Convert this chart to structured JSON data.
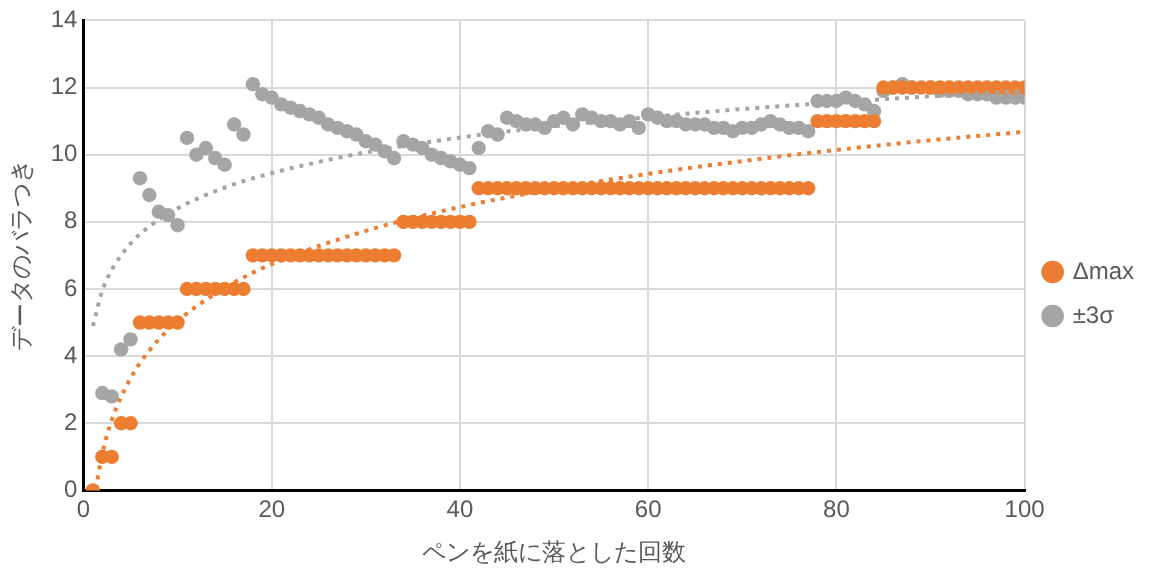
{
  "chart_data": {
    "type": "scatter",
    "xlabel": "ペンを紙に落とした回数",
    "ylabel": "データのバラつき",
    "x": [
      1,
      2,
      3,
      4,
      5,
      6,
      7,
      8,
      9,
      10,
      11,
      12,
      13,
      14,
      15,
      16,
      17,
      18,
      19,
      20,
      21,
      22,
      23,
      24,
      25,
      26,
      27,
      28,
      29,
      30,
      31,
      32,
      33,
      34,
      35,
      36,
      37,
      38,
      39,
      40,
      41,
      42,
      43,
      44,
      45,
      46,
      47,
      48,
      49,
      50,
      51,
      52,
      53,
      54,
      55,
      56,
      57,
      58,
      59,
      60,
      61,
      62,
      63,
      64,
      65,
      66,
      67,
      68,
      69,
      70,
      71,
      72,
      73,
      74,
      75,
      76,
      77,
      78,
      79,
      80,
      81,
      82,
      83,
      84,
      85,
      86,
      87,
      88,
      89,
      90,
      91,
      92,
      93,
      94,
      95,
      96,
      97,
      98,
      99,
      100
    ],
    "series": [
      {
        "type": "line",
        "color": "#a5a5a5",
        "line_style": "dotted",
        "marker": "none",
        "x": [
          1,
          2,
          3,
          5,
          7,
          10,
          15,
          20,
          30,
          40,
          50,
          60,
          70,
          80,
          90,
          100
        ],
        "values": [
          4.9,
          5.95,
          6.57,
          7.35,
          7.86,
          8.4,
          9.02,
          9.45,
          10.07,
          10.51,
          10.85,
          11.12,
          11.36,
          11.56,
          11.74,
          11.9
        ]
      },
      {
        "type": "line",
        "color": "#ed7d31",
        "line_style": "dotted",
        "marker": "none",
        "x": [
          1.3,
          2,
          3,
          5,
          7,
          10,
          15,
          20,
          30,
          40,
          50,
          60,
          70,
          80,
          90,
          100
        ],
        "values": [
          0.04,
          1.1,
          2.09,
          3.34,
          4.17,
          5.04,
          6.03,
          6.74,
          7.73,
          8.44,
          8.98,
          9.43,
          9.81,
          10.14,
          10.43,
          10.68
        ]
      },
      {
        "name": "Δmax",
        "color": "#ed7d31",
        "values": [
          0,
          1,
          1,
          2,
          2,
          5,
          5,
          5,
          5,
          5,
          6,
          6,
          6,
          6,
          6,
          6,
          6,
          7,
          7,
          7,
          7,
          7,
          7,
          7,
          7,
          7,
          7,
          7,
          7,
          7,
          7,
          7,
          7,
          8,
          8,
          8,
          8,
          8,
          8,
          8,
          8,
          9,
          9,
          9,
          9,
          9,
          9,
          9,
          9,
          9,
          9,
          9,
          9,
          9,
          9,
          9,
          9,
          9,
          9,
          9,
          9,
          9,
          9,
          9,
          9,
          9,
          9,
          9,
          9,
          9,
          9,
          9,
          9,
          9,
          9,
          9,
          9,
          11,
          11,
          11,
          11,
          11,
          11,
          11,
          12,
          12,
          12,
          12,
          12,
          12,
          12,
          12,
          12,
          12,
          12,
          12,
          12,
          12,
          12,
          12
        ]
      },
      {
        "name": "±3σ",
        "color": "#a5a5a5",
        "values": [
          null,
          2.9,
          2.8,
          4.2,
          4.5,
          9.3,
          8.8,
          8.3,
          8.2,
          7.9,
          10.5,
          10.0,
          10.2,
          9.9,
          9.7,
          10.9,
          10.6,
          12.1,
          11.8,
          11.7,
          11.5,
          11.4,
          11.3,
          11.2,
          11.1,
          10.9,
          10.8,
          10.7,
          10.6,
          10.4,
          10.3,
          10.1,
          9.9,
          10.4,
          10.3,
          10.2,
          10.0,
          9.9,
          9.8,
          9.7,
          9.6,
          10.2,
          10.7,
          10.6,
          11.1,
          11.0,
          10.9,
          10.9,
          10.8,
          11.0,
          11.1,
          10.9,
          11.2,
          11.1,
          11.0,
          11.0,
          10.9,
          11.0,
          10.8,
          11.2,
          11.1,
          11.0,
          11.0,
          10.9,
          10.9,
          10.9,
          10.8,
          10.8,
          10.7,
          10.8,
          10.8,
          10.9,
          11.0,
          10.9,
          10.8,
          10.8,
          10.7,
          11.6,
          11.6,
          11.6,
          11.7,
          11.6,
          11.5,
          11.3,
          11.9,
          12.0,
          12.1,
          12.0,
          null,
          12.0,
          11.9,
          11.9,
          11.9,
          11.8,
          11.8,
          11.8,
          11.7,
          11.7,
          11.7,
          11.7
        ]
      }
    ],
    "xlim": [
      0,
      100
    ],
    "xticks": [
      0,
      20,
      40,
      60,
      80,
      100
    ],
    "ylim": [
      0,
      14
    ],
    "yticks": [
      0,
      2,
      4,
      6,
      8,
      10,
      12,
      14
    ],
    "grid": true,
    "legend": "right",
    "marker": "circle"
  }
}
